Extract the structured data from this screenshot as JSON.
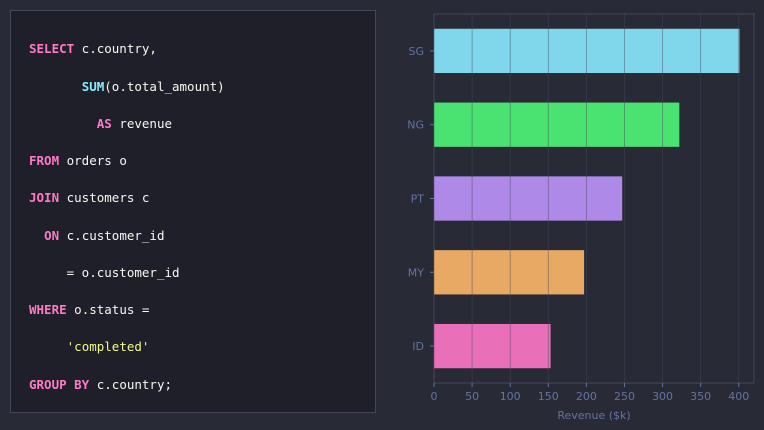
{
  "sql": {
    "lines": [
      [
        {
          "t": "SELECT",
          "k": "kw"
        },
        {
          "t": " c.country,",
          "k": "plain"
        }
      ],
      [
        {
          "t": "       ",
          "k": "plain"
        },
        {
          "t": "SUM",
          "k": "fn"
        },
        {
          "t": "(o.total_amount)",
          "k": "plain"
        }
      ],
      [
        {
          "t": "         ",
          "k": "plain"
        },
        {
          "t": "AS",
          "k": "kw"
        },
        {
          "t": " revenue",
          "k": "plain"
        }
      ],
      [
        {
          "t": "FROM",
          "k": "kw"
        },
        {
          "t": " orders o",
          "k": "plain"
        }
      ],
      [
        {
          "t": "JOIN",
          "k": "kw"
        },
        {
          "t": " customers c",
          "k": "plain"
        }
      ],
      [
        {
          "t": "  ",
          "k": "plain"
        },
        {
          "t": "ON",
          "k": "kw"
        },
        {
          "t": " c.customer_id",
          "k": "plain"
        }
      ],
      [
        {
          "t": "     = o.customer_id",
          "k": "plain"
        }
      ],
      [
        {
          "t": "WHERE",
          "k": "kw"
        },
        {
          "t": " o.status =",
          "k": "plain"
        }
      ],
      [
        {
          "t": "     ",
          "k": "plain"
        },
        {
          "t": "'completed'",
          "k": "str"
        }
      ],
      [
        {
          "t": "GROUP BY",
          "k": "kw"
        },
        {
          "t": " c.country;",
          "k": "plain"
        }
      ]
    ]
  },
  "chart_data": {
    "type": "bar",
    "orientation": "horizontal",
    "categories": [
      "SG",
      "NG",
      "PT",
      "MY",
      "ID"
    ],
    "values": [
      401,
      322,
      247,
      197,
      153
    ],
    "colors": [
      "#80d6ea",
      "#4ae270",
      "#ae89e8",
      "#e8a965",
      "#e96fb9"
    ],
    "xlabel": "Revenue ($k)",
    "ylabel": "",
    "xlim": [
      0,
      420
    ],
    "xticks": [
      0,
      50,
      100,
      150,
      200,
      250,
      300,
      350,
      400
    ],
    "grid": true
  }
}
